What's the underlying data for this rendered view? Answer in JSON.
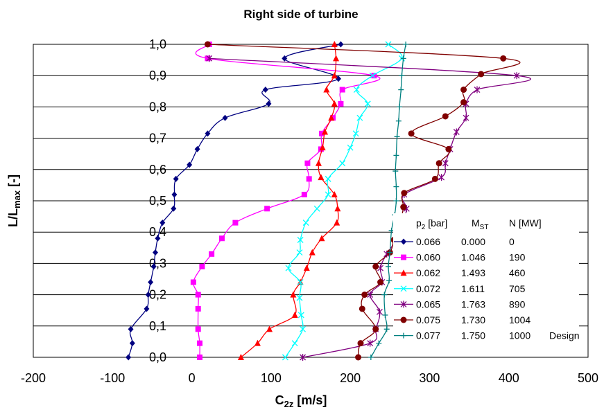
{
  "chart_data": {
    "type": "line",
    "title": "Right side of turbine",
    "xlabel": {
      "main": "C",
      "sub": "2z",
      "rest": " [m/s]"
    },
    "ylabel": {
      "main": "L/L",
      "sub": "max",
      "rest": " [-]"
    },
    "xlim": [
      -200,
      500
    ],
    "ylim": [
      0.0,
      1.0
    ],
    "x_ticks": [
      "-200",
      "-100",
      "0",
      "100",
      "200",
      "300",
      "400",
      "500"
    ],
    "x_tick_values": [
      -200,
      -100,
      0,
      100,
      200,
      300,
      400,
      500
    ],
    "y_ticks": [
      "0,0",
      "0,1",
      "0,2",
      "0,3",
      "0,4",
      "0,5",
      "0,6",
      "0,7",
      "0,8",
      "0,9",
      "1,0"
    ],
    "y_tick_values": [
      0.0,
      0.1,
      0.2,
      0.3,
      0.4,
      0.5,
      0.6,
      0.7,
      0.8,
      0.9,
      1.0
    ],
    "grid": "horizontal",
    "legend": {
      "position": "bottom-right",
      "headers": {
        "p2": "p",
        "p2_sub": "2",
        "p2_rest": " [bar]",
        "mst": "M",
        "mst_sub": "ST",
        "n": "N [MW]"
      }
    },
    "series": [
      {
        "p2": "0.066",
        "mst": "0.000",
        "n": "0",
        "extra": "",
        "color": "#000080",
        "marker": "diamond",
        "points": [
          [
            -80,
            0.0
          ],
          [
            -75,
            0.045
          ],
          [
            -77,
            0.09
          ],
          [
            -57,
            0.155
          ],
          [
            -55,
            0.2
          ],
          [
            -52,
            0.24
          ],
          [
            -48,
            0.29
          ],
          [
            -46,
            0.335
          ],
          [
            -43,
            0.38
          ],
          [
            -37,
            0.43
          ],
          [
            -23,
            0.475
          ],
          [
            -22,
            0.52
          ],
          [
            -20,
            0.57
          ],
          [
            -3,
            0.615
          ],
          [
            7,
            0.665
          ],
          [
            20,
            0.715
          ],
          [
            42,
            0.765
          ],
          [
            97,
            0.81
          ],
          [
            93,
            0.855
          ],
          [
            185,
            0.89
          ],
          [
            117,
            0.955
          ],
          [
            188,
            1.0
          ]
        ]
      },
      {
        "p2": "0.060",
        "mst": "1.046",
        "n": "190",
        "extra": "",
        "color": "#ff00ff",
        "marker": "square",
        "points": [
          [
            10,
            0.0
          ],
          [
            10,
            0.045
          ],
          [
            8,
            0.09
          ],
          [
            8,
            0.155
          ],
          [
            8,
            0.2
          ],
          [
            2,
            0.24
          ],
          [
            13,
            0.29
          ],
          [
            25,
            0.33
          ],
          [
            38,
            0.38
          ],
          [
            55,
            0.43
          ],
          [
            95,
            0.475
          ],
          [
            142,
            0.52
          ],
          [
            148,
            0.57
          ],
          [
            146,
            0.62
          ],
          [
            163,
            0.665
          ],
          [
            164,
            0.715
          ],
          [
            178,
            0.765
          ],
          [
            188,
            0.81
          ],
          [
            190,
            0.855
          ],
          [
            230,
            0.9
          ],
          [
            20,
            0.955
          ],
          [
            22,
            1.0
          ]
        ]
      },
      {
        "p2": "0.062",
        "mst": "1.493",
        "n": "460",
        "extra": "",
        "color": "#ff0000",
        "marker": "triangle",
        "points": [
          [
            62,
            0.0
          ],
          [
            83,
            0.045
          ],
          [
            98,
            0.09
          ],
          [
            130,
            0.135
          ],
          [
            128,
            0.2
          ],
          [
            137,
            0.24
          ],
          [
            145,
            0.285
          ],
          [
            152,
            0.335
          ],
          [
            164,
            0.38
          ],
          [
            183,
            0.43
          ],
          [
            184,
            0.475
          ],
          [
            180,
            0.52
          ],
          [
            163,
            0.575
          ],
          [
            160,
            0.62
          ],
          [
            165,
            0.67
          ],
          [
            168,
            0.72
          ],
          [
            176,
            0.765
          ],
          [
            180,
            0.81
          ],
          [
            170,
            0.855
          ],
          [
            180,
            0.9
          ],
          [
            182,
            0.955
          ],
          [
            180,
            1.0
          ]
        ]
      },
      {
        "p2": "0.072",
        "mst": "1.611",
        "n": "705",
        "extra": "",
        "color": "#00ffff",
        "marker": "x",
        "points": [
          [
            118,
            0.0
          ],
          [
            130,
            0.045
          ],
          [
            140,
            0.09
          ],
          [
            138,
            0.135
          ],
          [
            136,
            0.19
          ],
          [
            137,
            0.24
          ],
          [
            122,
            0.285
          ],
          [
            136,
            0.335
          ],
          [
            137,
            0.375
          ],
          [
            144,
            0.43
          ],
          [
            158,
            0.475
          ],
          [
            172,
            0.52
          ],
          [
            172,
            0.57
          ],
          [
            190,
            0.62
          ],
          [
            200,
            0.67
          ],
          [
            207,
            0.715
          ],
          [
            212,
            0.765
          ],
          [
            222,
            0.81
          ],
          [
            208,
            0.855
          ],
          [
            228,
            0.9
          ],
          [
            265,
            0.955
          ],
          [
            248,
            1.0
          ]
        ]
      },
      {
        "p2": "0.065",
        "mst": "1.763",
        "n": "890",
        "extra": "",
        "color": "#800080",
        "marker": "star",
        "points": [
          [
            140,
            0.0
          ],
          [
            225,
            0.045
          ],
          [
            232,
            0.09
          ],
          [
            237,
            0.145
          ],
          [
            225,
            0.2
          ],
          [
            240,
            0.24
          ],
          [
            238,
            0.285
          ],
          [
            246,
            0.33
          ],
          [
            258,
            0.375
          ],
          [
            265,
            0.415
          ],
          [
            271,
            0.475
          ],
          [
            268,
            0.52
          ],
          [
            315,
            0.575
          ],
          [
            320,
            0.62
          ],
          [
            326,
            0.665
          ],
          [
            334,
            0.72
          ],
          [
            346,
            0.765
          ],
          [
            346,
            0.81
          ],
          [
            360,
            0.855
          ],
          [
            410,
            0.9
          ],
          [
            22,
            0.955
          ]
        ]
      },
      {
        "p2": "0.075",
        "mst": "1.730",
        "n": "1004",
        "extra": "",
        "color": "#800000",
        "marker": "circle",
        "points": [
          [
            210,
            0.0
          ],
          [
            213,
            0.045
          ],
          [
            232,
            0.09
          ],
          [
            215,
            0.155
          ],
          [
            218,
            0.2
          ],
          [
            238,
            0.24
          ],
          [
            232,
            0.29
          ],
          [
            250,
            0.335
          ],
          [
            255,
            0.375
          ],
          [
            263,
            0.43
          ],
          [
            267,
            0.48
          ],
          [
            268,
            0.525
          ],
          [
            307,
            0.57
          ],
          [
            312,
            0.62
          ],
          [
            324,
            0.665
          ],
          [
            277,
            0.715
          ],
          [
            320,
            0.77
          ],
          [
            343,
            0.815
          ],
          [
            343,
            0.855
          ],
          [
            365,
            0.905
          ],
          [
            393,
            0.955
          ],
          [
            20,
            1.0
          ]
        ]
      },
      {
        "p2": "0.077",
        "mst": "1.750",
        "n": "1000",
        "extra": "Design",
        "color": "#008080",
        "marker": "plus",
        "points": [
          [
            226,
            0.0
          ],
          [
            236,
            0.045
          ],
          [
            246,
            0.09
          ],
          [
            244,
            0.135
          ],
          [
            243,
            0.2
          ],
          [
            249,
            0.245
          ],
          [
            248,
            0.29
          ],
          [
            250,
            0.335
          ],
          [
            252,
            0.405
          ],
          [
            256,
            0.455
          ],
          [
            258,
            0.5
          ],
          [
            258,
            0.545
          ],
          [
            257,
            0.595
          ],
          [
            258,
            0.645
          ],
          [
            259,
            0.705
          ],
          [
            261,
            0.755
          ],
          [
            262,
            0.8
          ],
          [
            264,
            0.855
          ],
          [
            265,
            0.9
          ],
          [
            267,
            0.955
          ],
          [
            270,
            1.0
          ]
        ]
      }
    ]
  }
}
